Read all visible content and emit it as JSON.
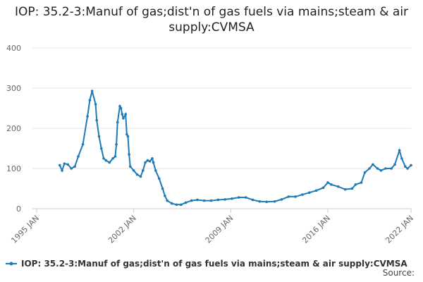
{
  "chart_data": {
    "type": "line",
    "title": "IOP: 35.2-3:Manuf of gas;dist'n of gas fuels via mains;steam & air supply:CVMSA",
    "source": "Source:",
    "x": [
      "1996-09",
      "1996-11",
      "1997-01",
      "1997-04",
      "1997-07",
      "1997-10",
      "1998-01",
      "1998-05",
      "1998-09",
      "1998-11",
      "1999-01",
      "1999-04",
      "1999-05",
      "1999-07",
      "1999-09",
      "1999-11",
      "2000-01",
      "2000-04",
      "2000-07",
      "2000-09",
      "2000-10",
      "2000-11",
      "2001-01",
      "2001-02",
      "2001-03",
      "2001-04",
      "2001-06",
      "2001-07",
      "2001-08",
      "2001-09",
      "2001-10",
      "2002-01",
      "2002-04",
      "2002-07",
      "2002-09",
      "2002-11",
      "2003-01",
      "2003-03",
      "2003-05",
      "2003-06",
      "2003-08",
      "2003-11",
      "2004-02",
      "2004-04",
      "2004-06",
      "2004-10",
      "2005-02",
      "2005-06",
      "2005-10",
      "2006-03",
      "2006-08",
      "2007-02",
      "2007-08",
      "2008-02",
      "2008-08",
      "2009-02",
      "2009-08",
      "2010-02",
      "2010-08",
      "2011-02",
      "2011-08",
      "2012-03",
      "2012-09",
      "2013-03",
      "2013-09",
      "2014-03",
      "2014-09",
      "2015-03",
      "2015-09",
      "2016-01",
      "2016-04",
      "2016-10",
      "2017-04",
      "2017-10",
      "2018-01",
      "2018-06",
      "2018-09",
      "2019-01",
      "2019-04",
      "2019-08",
      "2019-11",
      "2020-03",
      "2020-08",
      "2020-11",
      "2021-03",
      "2021-05",
      "2021-08",
      "2021-10",
      "2022-01"
    ],
    "series": [
      {
        "name": "IOP: 35.2-3:Manuf of gas;dist'n of gas fuels via mains;steam & air supply:CVMSA",
        "color": "#1f7bb6",
        "values": [
          108,
          95,
          112,
          110,
          100,
          105,
          130,
          160,
          230,
          270,
          293,
          260,
          220,
          180,
          150,
          125,
          120,
          115,
          125,
          130,
          160,
          215,
          255,
          250,
          235,
          225,
          235,
          185,
          180,
          135,
          105,
          95,
          85,
          80,
          95,
          115,
          120,
          118,
          125,
          115,
          95,
          75,
          50,
          32,
          20,
          13,
          10,
          10,
          15,
          20,
          22,
          20,
          20,
          22,
          23,
          25,
          28,
          28,
          22,
          18,
          17,
          18,
          23,
          30,
          30,
          35,
          40,
          45,
          52,
          65,
          60,
          55,
          48,
          50,
          60,
          65,
          90,
          100,
          110,
          100,
          95,
          100,
          100,
          110,
          145,
          125,
          105,
          100,
          108
        ]
      }
    ],
    "xlim": [
      "1995-01",
      "2022-01"
    ],
    "xticks": [
      {
        "value": "1995-01",
        "label": "1995 JAN"
      },
      {
        "value": "2002-01",
        "label": "2002 JAN"
      },
      {
        "value": "2009-01",
        "label": "2009 JAN"
      },
      {
        "value": "2016-01",
        "label": "2016 JAN"
      },
      {
        "value": "2022-01",
        "label": "2022 JAN"
      }
    ],
    "ylim": [
      0,
      400
    ],
    "yticks": [
      0,
      100,
      200,
      300,
      400
    ],
    "grid": true
  }
}
